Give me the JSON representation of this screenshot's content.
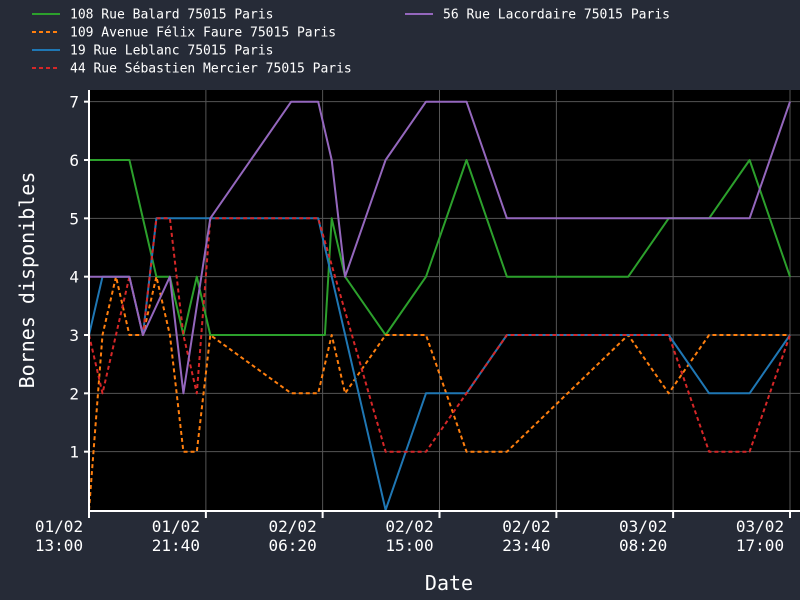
{
  "chart_data": {
    "type": "line",
    "xlabel": "Date",
    "ylabel": "Bornes disponibles",
    "xlim": [
      0,
      52
    ],
    "ylim": [
      0,
      7.2
    ],
    "grid": true,
    "legend_position": "top",
    "x_unit": "hours since 01/02 13:00",
    "x_ticks": [
      {
        "x": 0,
        "line1": "01/02",
        "line2": "13:00"
      },
      {
        "x": 8.67,
        "line1": "01/02",
        "line2": "21:40"
      },
      {
        "x": 17.33,
        "line1": "02/02",
        "line2": "06:20"
      },
      {
        "x": 26,
        "line1": "02/02",
        "line2": "15:00"
      },
      {
        "x": 34.67,
        "line1": "02/02",
        "line2": "23:40"
      },
      {
        "x": 43.33,
        "line1": "03/02",
        "line2": "08:20"
      },
      {
        "x": 52,
        "line1": "03/02",
        "line2": "17:00"
      }
    ],
    "y_ticks": [
      1,
      2,
      3,
      4,
      5,
      6,
      7
    ],
    "series": [
      {
        "name": "108 Rue Balard 75015 Paris",
        "color": "#2ca02c",
        "dash": "solid",
        "x": [
          0,
          3,
          5,
          6,
          7,
          8,
          9,
          17,
          17.5,
          18,
          19,
          22,
          25,
          28,
          31,
          37,
          40,
          43,
          46,
          49,
          52
        ],
        "y": [
          6,
          6,
          4,
          4,
          3,
          4,
          3,
          3,
          3,
          5,
          4,
          3,
          4,
          6,
          4,
          4,
          4,
          5,
          5,
          6,
          4
        ]
      },
      {
        "name": "109 Avenue Félix Faure 75015 Paris",
        "color": "#ff7f0e",
        "dash": "dashed",
        "x": [
          0,
          1,
          2,
          3,
          4,
          5,
          6,
          7,
          8,
          9,
          15,
          17,
          18,
          19,
          22,
          25,
          28,
          31,
          40,
          43,
          46,
          49,
          52
        ],
        "y": [
          0,
          3,
          4,
          3,
          3,
          4,
          3,
          1,
          1,
          3,
          2,
          2,
          3,
          2,
          3,
          3,
          1,
          1,
          3,
          2,
          3,
          3,
          3
        ]
      },
      {
        "name": "19 Rue Leblanc 75015 Paris",
        "color": "#1f77b4",
        "dash": "solid",
        "x": [
          0,
          1,
          3,
          4,
          5,
          9,
          17,
          22,
          25,
          28,
          31,
          43,
          46,
          49,
          52
        ],
        "y": [
          3,
          4,
          4,
          3,
          5,
          5,
          5,
          0,
          2,
          2,
          3,
          3,
          2,
          2,
          3
        ]
      },
      {
        "name": "44 Rue Sébastien Mercier 75015 Paris",
        "color": "#d62728",
        "dash": "dashed",
        "x": [
          0,
          1,
          3,
          4,
          5,
          6,
          7,
          8,
          9,
          17,
          22,
          25,
          31,
          43,
          46,
          49,
          52
        ],
        "y": [
          3,
          2,
          4,
          3,
          5,
          5,
          3,
          2,
          5,
          5,
          1,
          1,
          3,
          3,
          1,
          1,
          3
        ]
      },
      {
        "name": "56 Rue Lacordaire 75015 Paris",
        "color": "#9467bd",
        "dash": "solid",
        "x": [
          0,
          3,
          4,
          6,
          7,
          9,
          15,
          17,
          18,
          19,
          22,
          25,
          28,
          31,
          37,
          40,
          43,
          46,
          49,
          52
        ],
        "y": [
          4,
          4,
          3,
          4,
          2,
          5,
          7,
          7,
          6,
          4,
          6,
          7,
          7,
          5,
          5,
          5,
          5,
          5,
          5,
          7
        ]
      }
    ]
  }
}
